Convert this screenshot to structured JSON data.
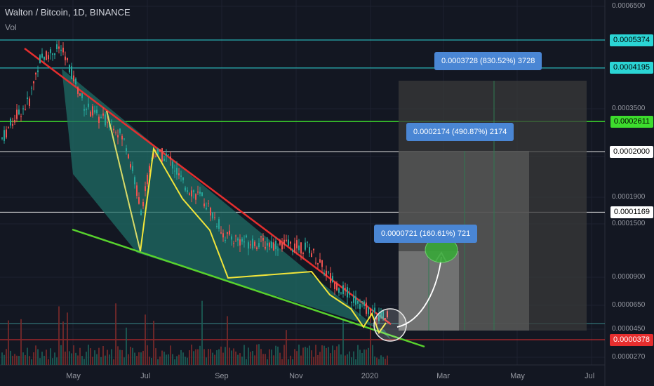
{
  "header": {
    "title": "Walton / Bitcoin, 1D, BINANCE",
    "volume_label": "Vol"
  },
  "colors": {
    "background": "#131722",
    "wedge_upper": "#e62e2e",
    "wedge_lower": "#58d22d",
    "zigzag": "#f2e53a",
    "wedge_fill": "#1f6d66",
    "level_cyan": "#2bd5d5",
    "level_green": "#3ddc2d",
    "level_white": "#e0e0e0",
    "level_red": "#e62e2e",
    "label_blue": "#4a86d4"
  },
  "chart_data": {
    "type": "candlestick",
    "title": "Walton / Bitcoin, 1D, BINANCE",
    "y_axis": {
      "scale": "log",
      "ticks": [
        "0.0006500",
        "0.0004500",
        "0.0003500",
        "0.0002500",
        "0.0001900",
        "0.0001500",
        "0.0000900",
        "0.0000650",
        "0.0000450",
        "0.0000270"
      ]
    },
    "x_axis": {
      "ticks": [
        "May",
        "Jul",
        "Sep",
        "Nov",
        "2020",
        "Mar",
        "May",
        "Jul"
      ]
    },
    "price_levels": [
      {
        "value": "0.0005374",
        "style": "cyan"
      },
      {
        "value": "0.0004195",
        "style": "cyan"
      },
      {
        "value": "0.0002611",
        "style": "green"
      },
      {
        "value": "0.0002000",
        "style": "white"
      },
      {
        "value": "0.0001169",
        "style": "white"
      },
      {
        "value": "0.0000378",
        "style": "red"
      }
    ],
    "targets": [
      "0.0003728 (830.52%) 3728",
      "0.0002174 (490.87%) 2174",
      "0.0000721 (160.61%) 721"
    ]
  }
}
